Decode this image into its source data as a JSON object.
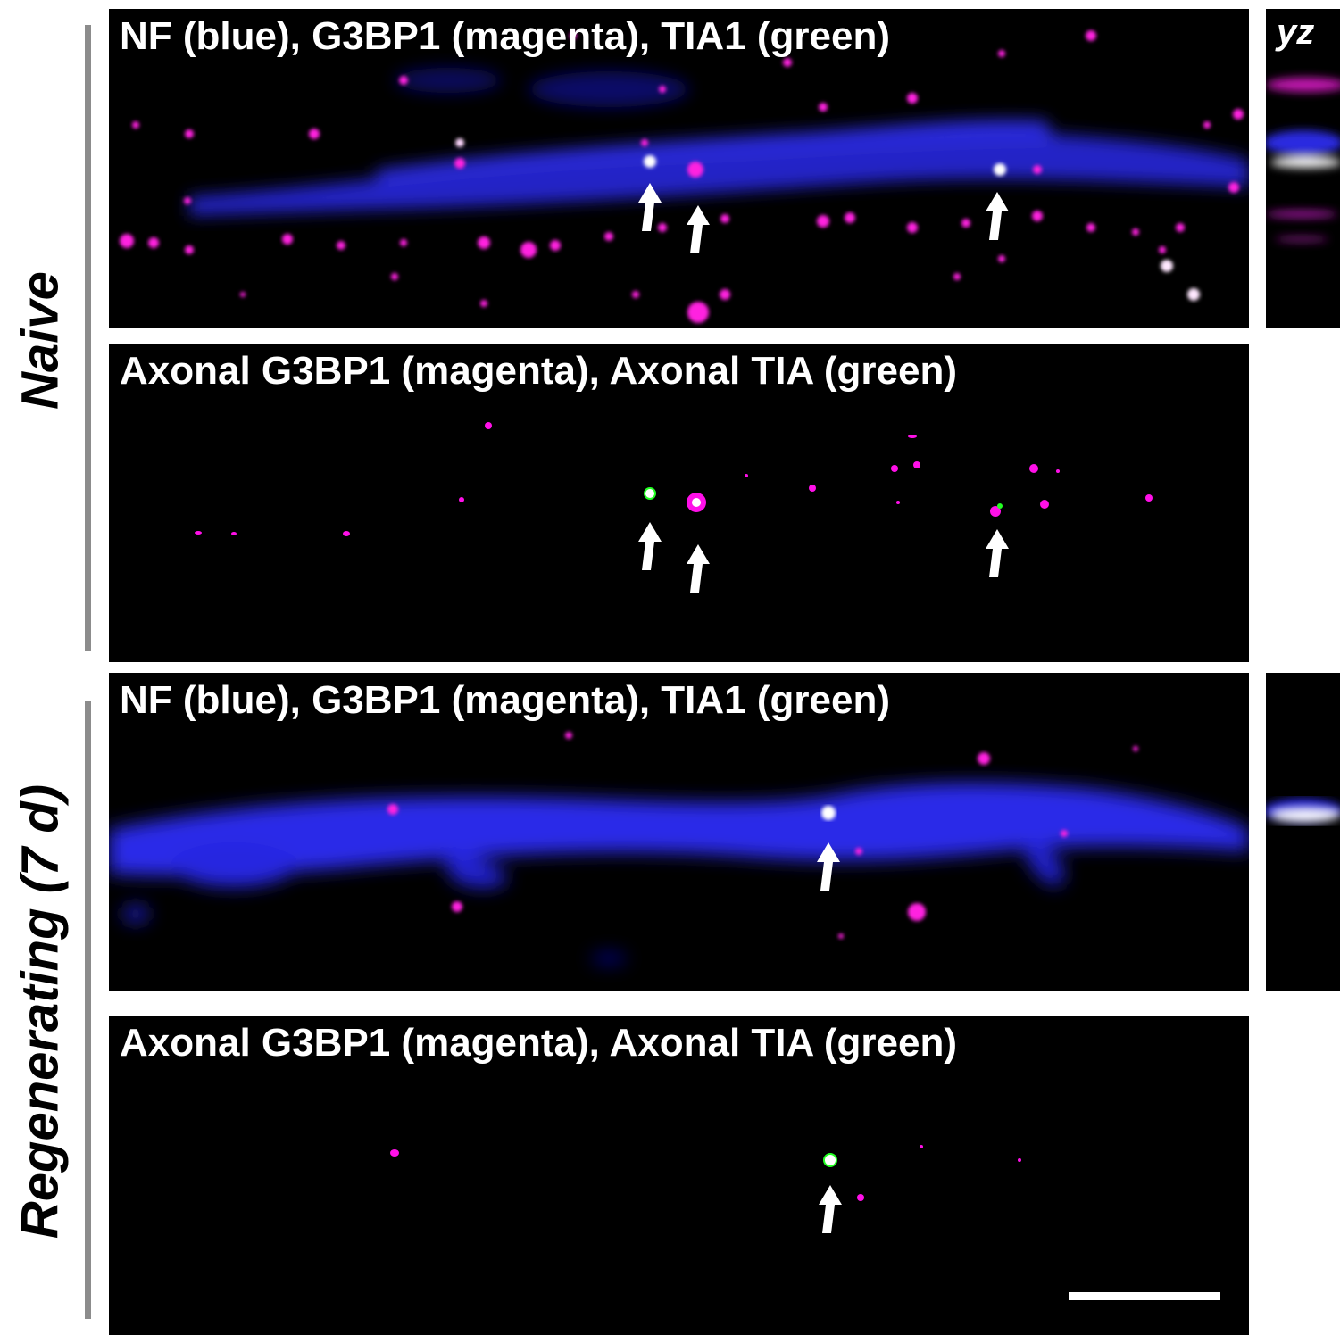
{
  "groups": [
    {
      "label": "Naive"
    },
    {
      "label": "Regenerating (7 d)"
    }
  ],
  "panels": {
    "naive_merge": {
      "title": "NF (blue), G3BP1 (magenta), TIA1 (green)"
    },
    "naive_axonal": {
      "title": "Axonal G3BP1 (magenta), Axonal TIA (green)"
    },
    "regen_merge": {
      "title": "NF (blue), G3BP1 (magenta), TIA1 (green)"
    },
    "regen_axonal": {
      "title": "Axonal G3BP1 (magenta), Axonal TIA (green)"
    }
  },
  "yz": {
    "label": "yz"
  },
  "colors": {
    "nf": "#2a2aff",
    "g3bp1": "#ff1fe0",
    "tia1": "#22ff22",
    "arrow": "#ffffff",
    "bracket": "#8c8c8c"
  }
}
